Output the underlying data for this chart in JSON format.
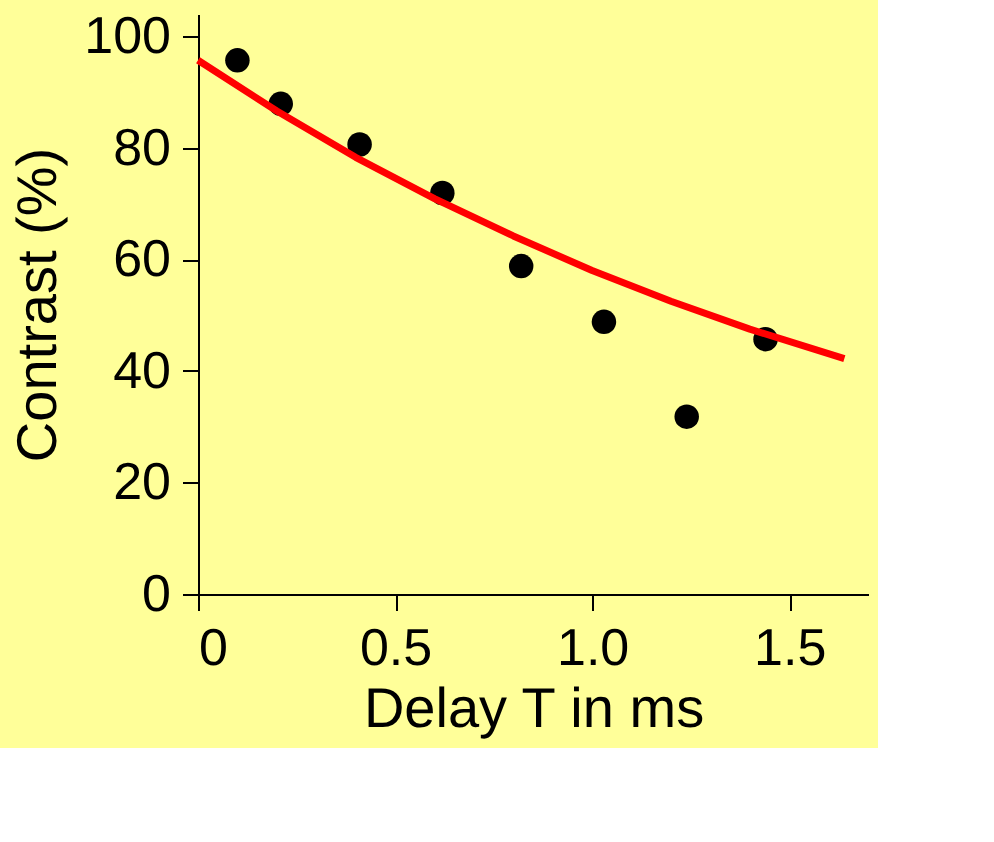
{
  "chart_data": {
    "type": "scatter",
    "xlabel": "Delay T in ms",
    "ylabel": "Contrast (%)",
    "xlim": [
      0,
      1.7
    ],
    "ylim": [
      0,
      104
    ],
    "xticks": [
      0,
      {
        "value": 0.5,
        "label": "0.5"
      },
      {
        "value": 1.0,
        "label": "1.0"
      },
      {
        "value": 1.5,
        "label": "1.5"
      }
    ],
    "yticks": [
      0,
      20,
      40,
      60,
      80,
      100
    ],
    "marker": "circle",
    "series": [
      {
        "color": "#000000",
        "x": [
          0.1,
          0.21,
          0.41,
          0.62,
          0.82,
          1.03,
          1.24,
          1.44
        ],
        "values": [
          95.7,
          87.9,
          80.6,
          71.9,
          58.8,
          48.8,
          31.8,
          45.7
        ]
      },
      {
        "type": "line",
        "color": "#ff0000",
        "line_style": "solid",
        "marker": "none",
        "x": [
          0,
          0.2,
          0.4,
          0.6,
          0.8,
          1.0,
          1.2,
          1.4,
          1.64
        ],
        "values": [
          95.7,
          86.6,
          78.3,
          70.9,
          64.2,
          58.0,
          52.5,
          47.5,
          42.2
        ]
      }
    ]
  }
}
